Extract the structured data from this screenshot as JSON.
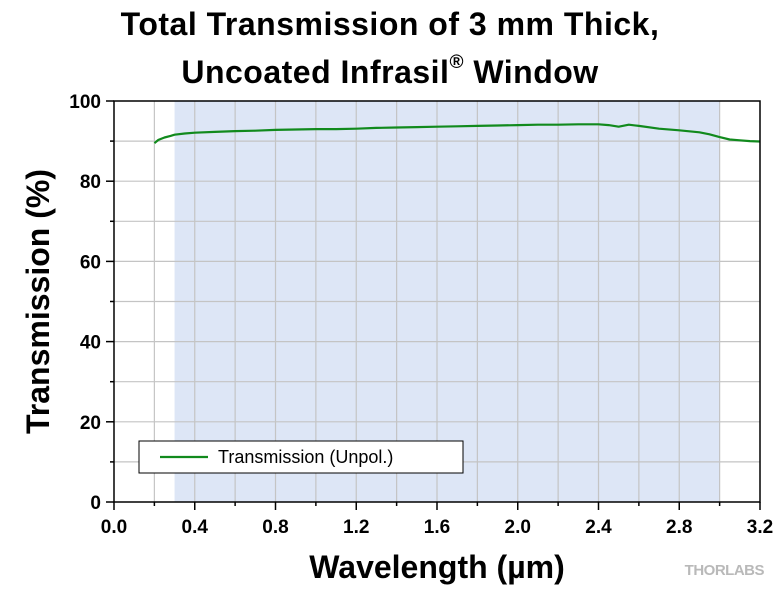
{
  "title": {
    "line1": "Total Transmission of 3 mm Thick,",
    "line2_main": "Uncoated Infrasil",
    "line2_reg": "®",
    "line2_end": " Window"
  },
  "watermark": "THORLABS",
  "chart_data": {
    "type": "line",
    "title": "Total Transmission of 3 mm Thick, Uncoated Infrasil® Window",
    "xlabel": "Wavelength (µm)",
    "ylabel": "Transmission (%)",
    "xlim": [
      0.0,
      3.2
    ],
    "ylim": [
      0,
      100
    ],
    "xticks": [
      "0.0",
      "0.4",
      "0.8",
      "1.2",
      "1.6",
      "2.0",
      "2.4",
      "2.8",
      "3.2"
    ],
    "yticks": [
      "0",
      "20",
      "40",
      "60",
      "80",
      "100"
    ],
    "grid": true,
    "shaded_region": {
      "x_range": [
        0.3,
        3.0
      ],
      "color": "#dde6f6"
    },
    "legend": {
      "position": "bottom-left",
      "entries": [
        "Transmission (Unpol.)"
      ]
    },
    "series": [
      {
        "name": "Transmission (Unpol.)",
        "color": "#118a1d",
        "x": [
          0.2,
          0.22,
          0.25,
          0.28,
          0.3,
          0.35,
          0.4,
          0.5,
          0.6,
          0.7,
          0.8,
          0.9,
          1.0,
          1.1,
          1.2,
          1.3,
          1.4,
          1.5,
          1.6,
          1.7,
          1.8,
          1.9,
          2.0,
          2.1,
          2.2,
          2.3,
          2.35,
          2.4,
          2.45,
          2.5,
          2.55,
          2.6,
          2.7,
          2.8,
          2.9,
          2.95,
          3.0,
          3.05,
          3.1,
          3.15,
          3.2
        ],
        "y": [
          89.5,
          90.3,
          90.9,
          91.3,
          91.6,
          91.9,
          92.1,
          92.3,
          92.5,
          92.6,
          92.8,
          92.9,
          93.0,
          93.0,
          93.1,
          93.3,
          93.4,
          93.5,
          93.6,
          93.7,
          93.8,
          93.9,
          94.0,
          94.1,
          94.1,
          94.2,
          94.2,
          94.2,
          94.0,
          93.6,
          94.1,
          93.8,
          93.1,
          92.7,
          92.2,
          91.7,
          91.0,
          90.4,
          90.2,
          90.0,
          89.9
        ]
      }
    ]
  }
}
